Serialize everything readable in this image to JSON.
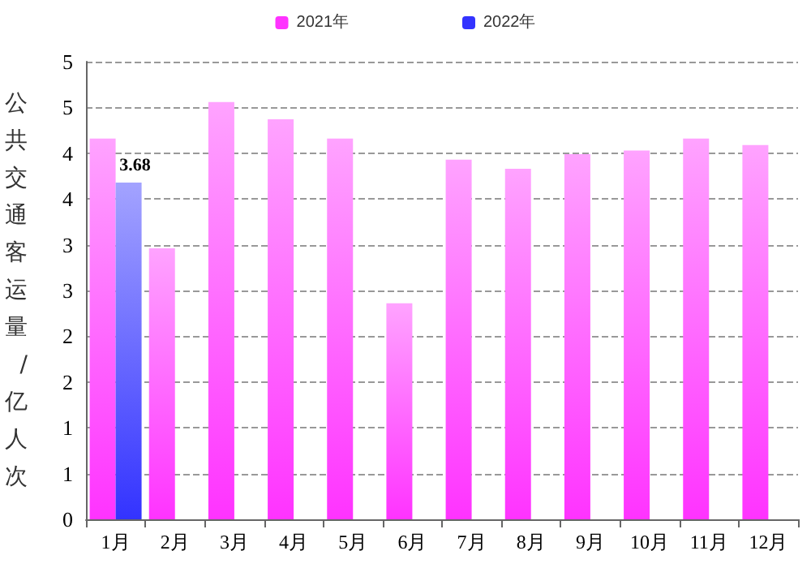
{
  "chart_data": {
    "type": "bar",
    "ylabel": "公共交通客运量/亿人次",
    "categories": [
      "1月",
      "2月",
      "3月",
      "4月",
      "5月",
      "6月",
      "7月",
      "8月",
      "9月",
      "10月",
      "11月",
      "12月"
    ],
    "series": [
      {
        "name": "2021年",
        "color": "#ff33ff",
        "values": [
          4.16,
          2.96,
          4.56,
          4.37,
          4.16,
          2.36,
          3.93,
          3.83,
          3.99,
          4.03,
          4.16,
          4.09
        ]
      },
      {
        "name": "2022年",
        "color": "#3333ff",
        "values": [
          3.68,
          null,
          null,
          null,
          null,
          null,
          null,
          null,
          null,
          null,
          null,
          null
        ],
        "value_labels": [
          "3.68",
          null,
          null,
          null,
          null,
          null,
          null,
          null,
          null,
          null,
          null,
          null
        ]
      }
    ],
    "ylim": [
      0,
      5
    ],
    "yticks": [
      {
        "value": 0,
        "label": "0"
      },
      {
        "value": 0.5,
        "label": "1"
      },
      {
        "value": 1,
        "label": "1"
      },
      {
        "value": 1.5,
        "label": "2"
      },
      {
        "value": 2,
        "label": "2"
      },
      {
        "value": 2.5,
        "label": "3"
      },
      {
        "value": 3,
        "label": "3"
      },
      {
        "value": 3.5,
        "label": "4"
      },
      {
        "value": 4,
        "label": "4"
      },
      {
        "value": 4.5,
        "label": "5"
      },
      {
        "value": 5,
        "label": "5"
      }
    ],
    "grid": "y",
    "legend": "top"
  }
}
